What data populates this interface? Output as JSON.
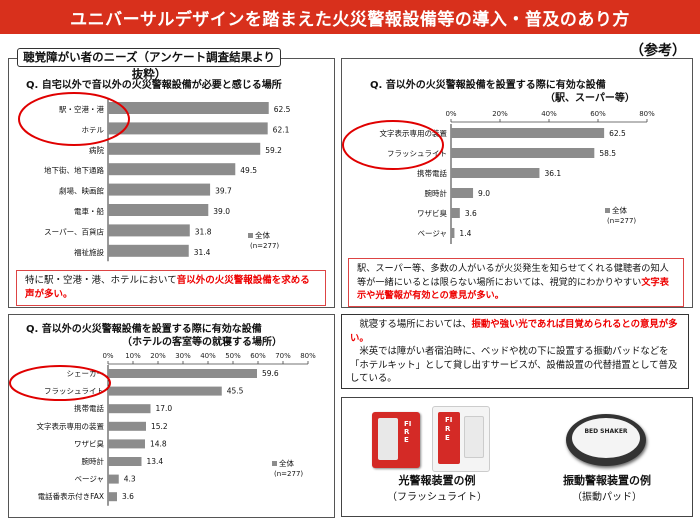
{
  "header": {
    "title": "ユニバーサルデザインを踏まえた火災警報設備等の導入・普及のあり方",
    "tag": "（参考）",
    "section": "聴覚障がい者のニーズ（アンケート調査結果より抜粋）"
  },
  "colors": {
    "banner": "#d8301c",
    "bar": "#8c8c8c",
    "highlight": "#e00000",
    "circle": "#e00000"
  },
  "chart1": {
    "question": "Q. 自宅以外で音以外の火災警報設備が必要と感じる場所",
    "legend": [
      "全体",
      "(n=277)"
    ],
    "caption": {
      "pre": "特に駅・空港・港、ホテルにおいて",
      "red": "音以外の火災警報設備を求める声が多い。"
    }
  },
  "chart2": {
    "question": "Q. 音以外の火災警報設備を設置する際に有効な設備",
    "question2": "（駅、スーパー等）",
    "legend": [
      "全体",
      "(n=277)"
    ],
    "caption": {
      "pre": "駅、スーパー等、多数の人がいるが火災発生を知らせてくれる健聴者の知人等が一緒にいるとは限らない場所においては、視覚的にわかりやすい",
      "red": "文字表示や光警報が有効との意見が多い。"
    }
  },
  "chart3": {
    "question": "Q. 音以外の火災警報設備を設置する際に有効な設備",
    "question2": "（ホテルの客室等の就寝する場所）",
    "legend": [
      "全体",
      "(n=277)"
    ]
  },
  "note": {
    "p1_pre": "就寝する場所においては、",
    "p1_red": "振動や強い光であれば目覚められるとの意見が多い。",
    "p2": "米英では障がい者宿泊時に、ベッドや枕の下に設置する振動パッドなどを「ホテルキット」として貸し出すサービスが、設備設置の代替措置として普及している。"
  },
  "photos": {
    "left": {
      "title": "光警報装置の例",
      "sub": "（フラッシュライト）",
      "device_text": "FIRE"
    },
    "right": {
      "title": "振動警報装置の例",
      "sub": "（振動パッド）",
      "device_text": "BED SHAKER"
    }
  },
  "chart_data": [
    {
      "type": "bar",
      "orientation": "horizontal",
      "categories": [
        "駅・空港・港",
        "ホテル",
        "病院",
        "地下街、地下通路",
        "劇場、映画館",
        "電車・船",
        "スーパー、百貨店",
        "福祉施設"
      ],
      "values": [
        62.5,
        62.1,
        59.2,
        49.5,
        39.7,
        39.0,
        31.8,
        31.4
      ],
      "labels": [
        "62.5",
        "62.1",
        "59.2",
        "49.5",
        "39.7",
        "39.0",
        "31.8",
        "31.4"
      ],
      "xlim": [
        0,
        70
      ],
      "highlighted": [
        "駅・空港・港",
        "ホテル"
      ]
    },
    {
      "type": "bar",
      "orientation": "horizontal",
      "categories": [
        "文字表示専用の装置",
        "フラッシュライト",
        "携帯電話",
        "腕時計",
        "ワザビ臭",
        "ベージャ"
      ],
      "values": [
        62.5,
        58.5,
        36.1,
        9.0,
        3.6,
        1.4
      ],
      "labels": [
        "62.5",
        "58.5",
        "36.1",
        "9.0",
        "3.6",
        "1.4"
      ],
      "ticks": [
        "0%",
        "20%",
        "40%",
        "60%",
        "80%"
      ],
      "xlim": [
        0,
        80
      ],
      "highlighted": [
        "文字表示専用の装置",
        "フラッシュライト"
      ]
    },
    {
      "type": "bar",
      "orientation": "horizontal",
      "categories": [
        "シェーカー",
        "フラッシュライト",
        "携帯電話",
        "文字表示専用の装置",
        "ワザビ臭",
        "腕時計",
        "ベージャ",
        "電話番表示付きFAX"
      ],
      "values": [
        59.6,
        45.5,
        17.0,
        15.2,
        14.8,
        13.4,
        4.3,
        3.6
      ],
      "labels": [
        "59.6",
        "45.5",
        "17.0",
        "15.2",
        "14.8",
        "13.4",
        "4.3",
        "3.6"
      ],
      "ticks": [
        "0%",
        "10%",
        "20%",
        "30%",
        "40%",
        "50%",
        "60%",
        "70%",
        "80%"
      ],
      "xlim": [
        0,
        80
      ],
      "highlighted": [
        "シェーカー",
        "フラッシュライト"
      ]
    }
  ]
}
